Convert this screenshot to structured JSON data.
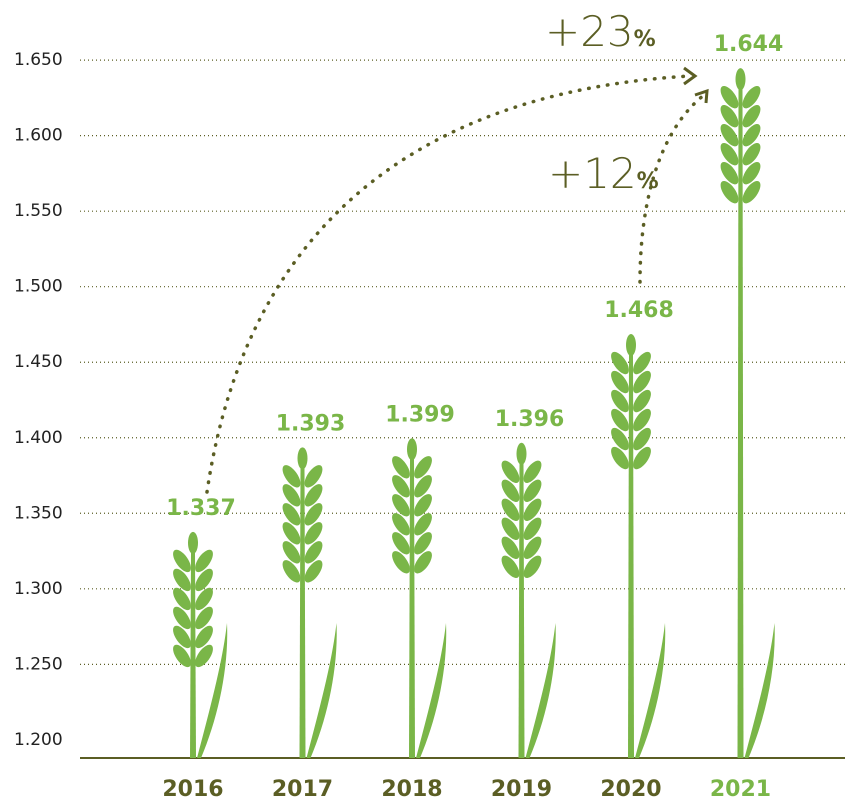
{
  "chart_data": {
    "type": "bar",
    "categories": [
      "2016",
      "2017",
      "2018",
      "2019",
      "2020",
      "2021"
    ],
    "values": [
      1337,
      1393,
      1399,
      1396,
      1468,
      1644
    ],
    "value_labels": [
      "1.337",
      "1.393",
      "1.399",
      "1.396",
      "1.468",
      "1.644"
    ],
    "color": "#7ab648",
    "ylim": [
      1188,
      1660
    ],
    "yticks": [
      {
        "value": 1200,
        "label": "1.200"
      },
      {
        "value": 1250,
        "label": "1.250"
      },
      {
        "value": 1300,
        "label": "1.300"
      },
      {
        "value": 1350,
        "label": "1.350"
      },
      {
        "value": 1400,
        "label": "1.400"
      },
      {
        "value": 1450,
        "label": "1.450"
      },
      {
        "value": 1500,
        "label": "1.500"
      },
      {
        "value": 1550,
        "label": "1.550"
      },
      {
        "value": 1600,
        "label": "1.600"
      },
      {
        "value": 1650,
        "label": "1.650"
      }
    ],
    "grid": true,
    "annotations": [
      {
        "text": "+23",
        "suffix": "%"
      },
      {
        "text": "+12",
        "suffix": "%"
      }
    ]
  }
}
